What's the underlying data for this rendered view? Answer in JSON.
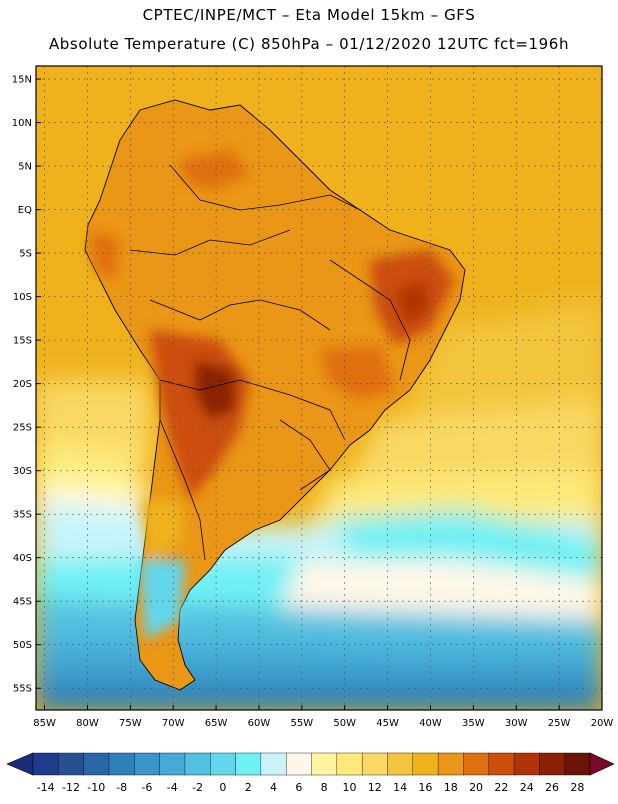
{
  "header": {
    "line1": "CPTEC/INPE/MCT –  Eta Model 15km – GFS",
    "line2": "Absolute Temperature (C) 850hPa – 01/12/2020 12UTC fct=196h"
  },
  "map": {
    "lat_labels": [
      "15N",
      "10N",
      "5N",
      "EQ",
      "5S",
      "10S",
      "15S",
      "20S",
      "25S",
      "30S",
      "35S",
      "40S",
      "45S",
      "50S",
      "55S"
    ],
    "lat_values": [
      15,
      10,
      5,
      0,
      -5,
      -10,
      -15,
      -20,
      -25,
      -30,
      -35,
      -40,
      -45,
      -50,
      -55
    ],
    "lon_labels": [
      "85W",
      "80W",
      "75W",
      "70W",
      "65W",
      "60W",
      "55W",
      "50W",
      "45W",
      "40W",
      "35W",
      "30W",
      "25W",
      "20W"
    ],
    "lon_values": [
      -85,
      -80,
      -75,
      -70,
      -65,
      -60,
      -55,
      -50,
      -45,
      -40,
      -35,
      -30,
      -25,
      -20
    ],
    "lat_range": [
      -57.5,
      16.5
    ],
    "lon_range": [
      -86,
      -20
    ]
  },
  "colorbar": {
    "labels": [
      "-14",
      "-12",
      "-10",
      "-8",
      "-6",
      "-4",
      "-2",
      "0",
      "2",
      "4",
      "6",
      "8",
      "10",
      "12",
      "14",
      "16",
      "18",
      "20",
      "22",
      "24",
      "26",
      "28"
    ],
    "colors": [
      "#1e3c8c",
      "#24508f",
      "#2a67a6",
      "#2f7fb8",
      "#3a95c8",
      "#44aad6",
      "#52c0e0",
      "#64d6ec",
      "#6ff0f4",
      "#c8f4fa",
      "#fff8e8",
      "#fff5a0",
      "#fde97a",
      "#f9d864",
      "#f3c53e",
      "#efb21c",
      "#ea9616",
      "#e07010",
      "#cc4e0a",
      "#b03406",
      "#8a2006",
      "#6a1408"
    ],
    "min": -14,
    "max": 28,
    "step": 2
  }
}
